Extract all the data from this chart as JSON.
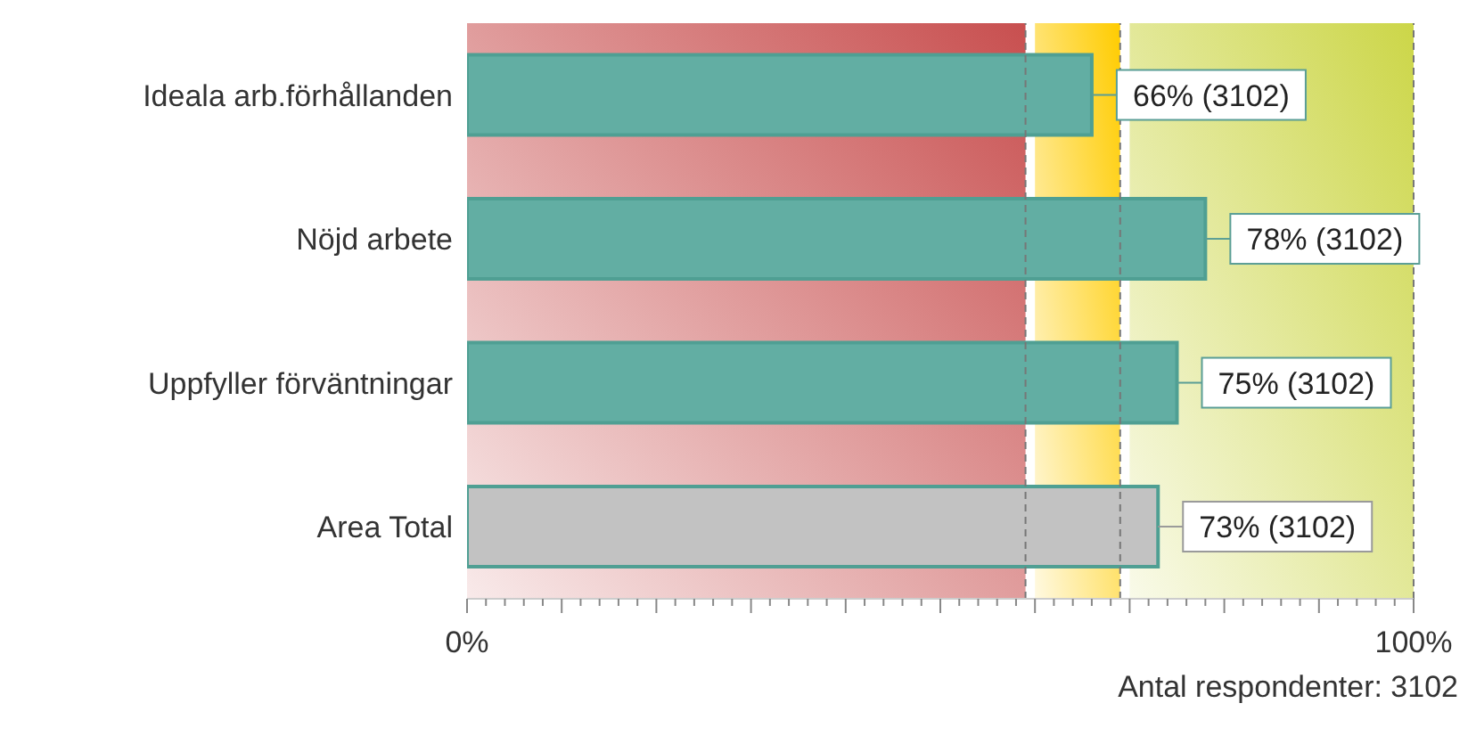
{
  "chart_data": {
    "type": "bar",
    "orientation": "horizontal",
    "categories": [
      "Ideala arb.förhållanden",
      "Nöjd arbete",
      "Uppfyller förväntningar",
      "Area Total"
    ],
    "values": [
      66,
      78,
      75,
      73
    ],
    "colors": [
      "#62aea3",
      "#62aea3",
      "#62aea3",
      "#c2c2c2"
    ],
    "value_labels": [
      "66% (3102)",
      "78% (3102)",
      "75% (3102)",
      "73% (3102)"
    ],
    "xlim": [
      0,
      100
    ],
    "xticks": [
      {
        "value": 0,
        "label": "0%"
      },
      {
        "value": 2,
        "label": null
      },
      {
        "value": 4,
        "label": null
      },
      {
        "value": 6,
        "label": null
      },
      {
        "value": 8,
        "label": null
      },
      {
        "value": 10,
        "label": null
      },
      {
        "value": 12,
        "label": null
      },
      {
        "value": 14,
        "label": null
      },
      {
        "value": 16,
        "label": null
      },
      {
        "value": 18,
        "label": null
      },
      {
        "value": 20,
        "label": null
      },
      {
        "value": 22,
        "label": null
      },
      {
        "value": 24,
        "label": null
      },
      {
        "value": 26,
        "label": null
      },
      {
        "value": 28,
        "label": null
      },
      {
        "value": 30,
        "label": null
      },
      {
        "value": 32,
        "label": null
      },
      {
        "value": 34,
        "label": null
      },
      {
        "value": 36,
        "label": null
      },
      {
        "value": 38,
        "label": null
      },
      {
        "value": 40,
        "label": null
      },
      {
        "value": 42,
        "label": null
      },
      {
        "value": 44,
        "label": null
      },
      {
        "value": 46,
        "label": null
      },
      {
        "value": 48,
        "label": null
      },
      {
        "value": 50,
        "label": null
      },
      {
        "value": 52,
        "label": null
      },
      {
        "value": 54,
        "label": null
      },
      {
        "value": 56,
        "label": null
      },
      {
        "value": 58,
        "label": null
      },
      {
        "value": 60,
        "label": null
      },
      {
        "value": 62,
        "label": null
      },
      {
        "value": 64,
        "label": null
      },
      {
        "value": 66,
        "label": null
      },
      {
        "value": 68,
        "label": null
      },
      {
        "value": 70,
        "label": null
      },
      {
        "value": 72,
        "label": null
      },
      {
        "value": 74,
        "label": null
      },
      {
        "value": 76,
        "label": null
      },
      {
        "value": 78,
        "label": null
      },
      {
        "value": 80,
        "label": null
      },
      {
        "value": 82,
        "label": null
      },
      {
        "value": 84,
        "label": null
      },
      {
        "value": 86,
        "label": null
      },
      {
        "value": 88,
        "label": null
      },
      {
        "value": 90,
        "label": null
      },
      {
        "value": 92,
        "label": null
      },
      {
        "value": 94,
        "label": null
      },
      {
        "value": 96,
        "label": null
      },
      {
        "value": 98,
        "label": null
      },
      {
        "value": 100,
        "label": "100%"
      }
    ],
    "bands": [
      {
        "axis": "x",
        "from": 0,
        "to": 59,
        "color": "#c84f4f"
      },
      {
        "axis": "x",
        "from": 60,
        "to": 69,
        "color": "#ffcc00"
      },
      {
        "axis": "x",
        "from": 70,
        "to": 100,
        "color": "#ccd648"
      }
    ],
    "ref_lines": [
      {
        "axis": "x",
        "value": 59,
        "color": "#777777",
        "line_style": "dashed"
      },
      {
        "axis": "x",
        "value": 69,
        "color": "#777777",
        "line_style": "dashed"
      },
      {
        "axis": "x",
        "value": 100,
        "color": "#777777",
        "line_style": "dashed"
      }
    ],
    "annotations": [
      "Antal respondenter: 3102"
    ]
  }
}
